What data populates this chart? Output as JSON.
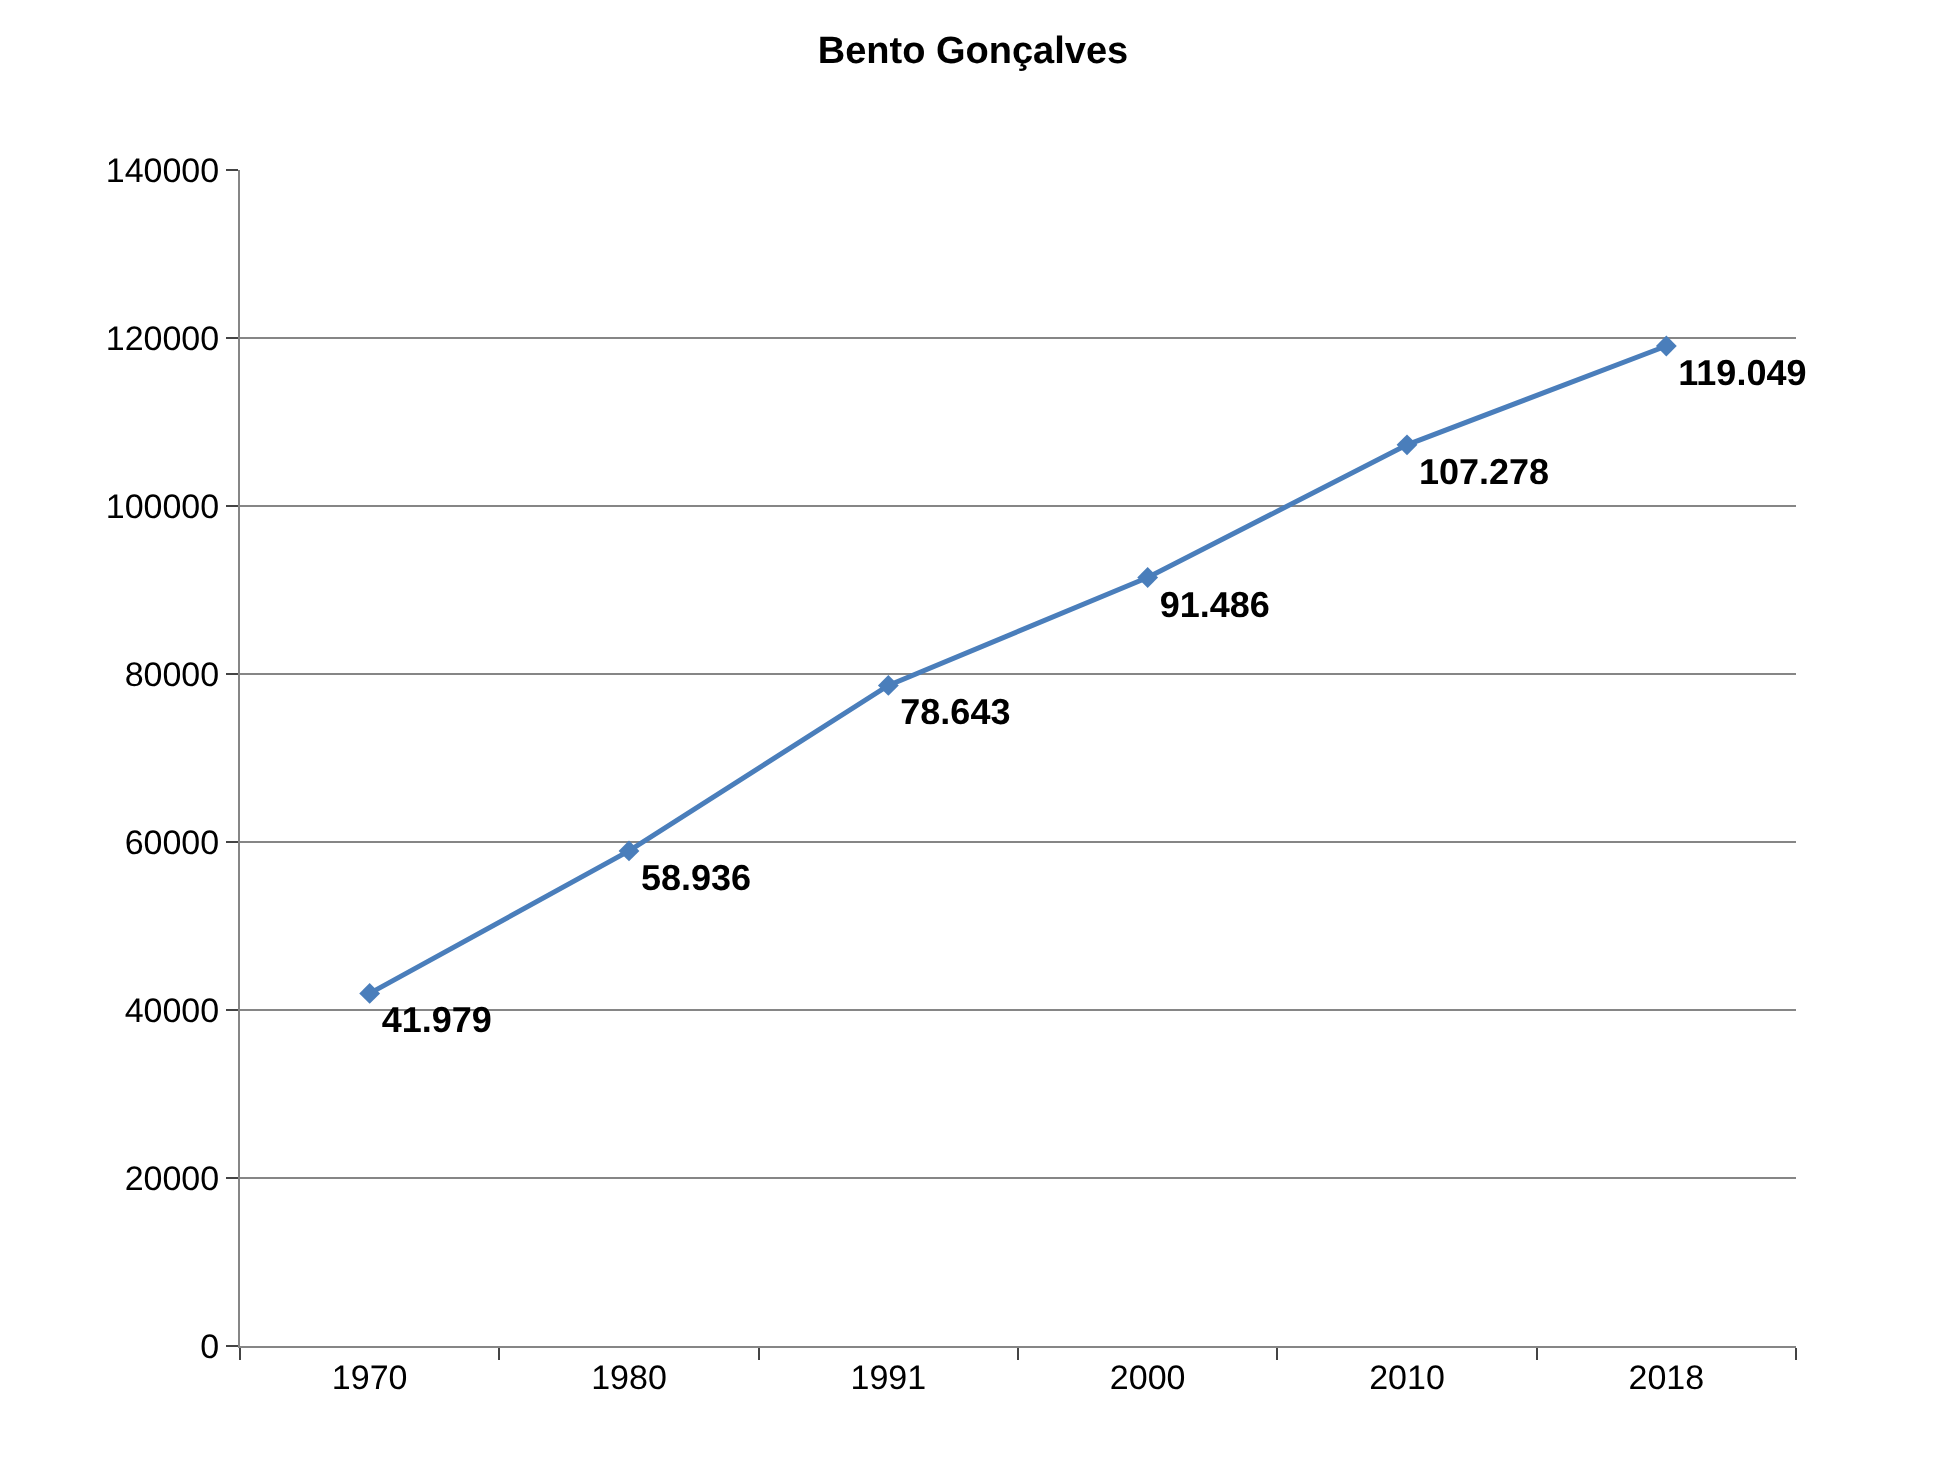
{
  "chart_data": {
    "type": "line",
    "title": "Bento Gonçalves",
    "categories": [
      "1970",
      "1980",
      "1991",
      "2000",
      "2010",
      "2018"
    ],
    "series": [
      {
        "color": "#4a7ebb",
        "values": [
          41979,
          58936,
          78643,
          91486,
          107278,
          119049
        ],
        "value_labels": [
          "41.979",
          "58.936",
          "78.643",
          "91.486",
          "107.278",
          "119.049"
        ]
      }
    ],
    "ylim": [
      0,
      140000
    ],
    "yticks": [
      0,
      20000,
      40000,
      60000,
      80000,
      100000,
      120000,
      140000
    ],
    "grid": "y",
    "marker": "diamond",
    "line_style": "solid"
  }
}
